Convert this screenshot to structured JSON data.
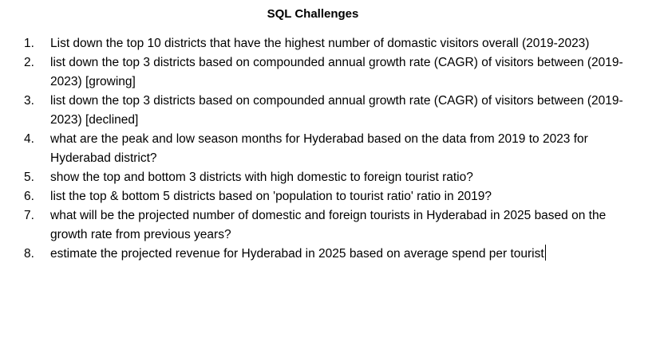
{
  "document": {
    "title": "SQL Challenges",
    "items": [
      {
        "num": "1.",
        "text": "List down the top 10 districts that have the highest number of domastic visitors overall (2019-2023)"
      },
      {
        "num": "2.",
        "text": "list down the top 3 districts based on compounded annual growth rate (CAGR) of visitors between (2019-2023) [growing]"
      },
      {
        "num": "3.",
        "text": "list down the top 3 districts based on compounded annual growth rate (CAGR) of visitors between (2019-2023) [declined]"
      },
      {
        "num": "4.",
        "text": "what are the peak and low season months for Hyderabad based on the data from 2019 to 2023 for Hyderabad district?"
      },
      {
        "num": "5.",
        "text": "show the top and bottom 3 districts with high domestic to foreign tourist ratio?"
      },
      {
        "num": "6.",
        "text": "list the top & bottom 5 districts based on 'population to tourist ratio' ratio in 2019?"
      },
      {
        "num": "7.",
        "text": "what will be the projected number of domestic and foreign tourists in Hyderabad in 2025 based on the growth rate from previous years?"
      },
      {
        "num": "8.",
        "text": "estimate the projected revenue for Hyderabad in 2025 based on average spend per tourist"
      }
    ]
  }
}
